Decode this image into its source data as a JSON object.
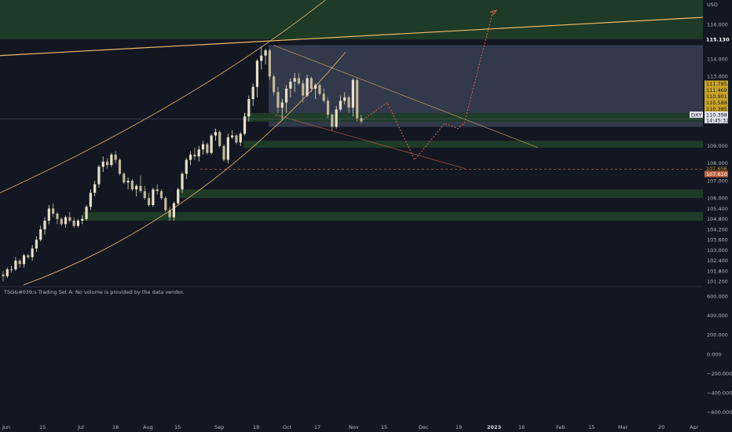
{
  "symbol": "DXY",
  "currency": "USD",
  "indicator_label": "TSG&#039;s Trading Set A: No volume is provided by the data vendor.",
  "price_badges": [
    {
      "text": "115.130",
      "bg": "#131722",
      "fg": "#ffffff",
      "bold": true
    },
    {
      "text": "111.785",
      "bg": "#c9a227",
      "fg": "#131722"
    },
    {
      "text": "111.469",
      "bg": "#c9a227",
      "fg": "#131722"
    },
    {
      "text": "110.901",
      "bg": "#c9a227",
      "fg": "#131722"
    },
    {
      "text": "110.588",
      "bg": "#c9a227",
      "fg": "#131722"
    },
    {
      "text": "110.385",
      "bg": "#c9a227",
      "fg": "#131722"
    },
    {
      "text": "110.398",
      "bg": "#e0e3eb",
      "fg": "#131722"
    },
    {
      "text": "14:45:32",
      "bg": "#e0e3eb",
      "fg": "#131722"
    },
    {
      "text": "107.656",
      "bg": "#131722",
      "fg": "#c9a227"
    },
    {
      "text": "107.610",
      "bg": "#c0623b",
      "fg": "#ffffff"
    }
  ],
  "colors": {
    "background": "#131722",
    "up_candle": "#e8e0c8",
    "down_candle": "#c0b896",
    "zone_green": "#1f3d28",
    "zone_blue": "#3c4558",
    "orange_line": "#f0b86a",
    "projection": "#e0664a",
    "text": "#b2b5be"
  },
  "chart_data": {
    "type": "candlestick",
    "symbol": "DXY",
    "y_unit": "USD",
    "price_axis_ticks": [
      "116.000",
      "115.130",
      "114.000",
      "113.000",
      "111.785",
      "111.469",
      "110.901",
      "110.588",
      "110.385",
      "110.398",
      "109.000",
      "108.000",
      "107.656",
      "107.610",
      "107.000",
      "106.000",
      "105.400",
      "104.800",
      "104.200",
      "103.600",
      "103.000",
      "102.400",
      "101.800",
      "101.200"
    ],
    "indicator_axis_ticks": [
      "600.000",
      "400.000",
      "200.000",
      "0.000",
      "−200.000",
      "−400.000",
      "−600.000"
    ],
    "time_axis_ticks": [
      "Jun",
      "15",
      "Jul",
      "18",
      "Aug",
      "15",
      "Sep",
      "19",
      "Oct",
      "17",
      "Nov",
      "15",
      "Dec",
      "19",
      "2023",
      "16",
      "Feb",
      "15",
      "Mar",
      "20",
      "Apr"
    ],
    "last_price": 110.398,
    "ylim": [
      100.9,
      117.4
    ],
    "indicator_ylim": [
      -700,
      700
    ],
    "candles": [
      [
        101.6,
        101.2,
        101.8,
        101.5
      ],
      [
        101.5,
        101.4,
        102.0,
        101.9
      ],
      [
        101.9,
        101.7,
        102.1,
        101.9
      ],
      [
        101.9,
        101.8,
        102.6,
        102.4
      ],
      [
        102.4,
        102.0,
        102.5,
        102.2
      ],
      [
        102.2,
        102.0,
        102.8,
        102.7
      ],
      [
        102.7,
        102.5,
        102.8,
        102.6
      ],
      [
        102.6,
        102.4,
        103.3,
        103.1
      ],
      [
        103.1,
        102.9,
        103.8,
        103.6
      ],
      [
        103.6,
        103.5,
        104.4,
        104.2
      ],
      [
        104.2,
        103.9,
        104.9,
        104.7
      ],
      [
        104.7,
        104.5,
        105.6,
        105.4
      ],
      [
        105.4,
        104.9,
        105.7,
        105.1
      ],
      [
        105.1,
        104.5,
        105.2,
        104.8
      ],
      [
        104.8,
        104.4,
        104.9,
        104.5
      ],
      [
        104.5,
        104.3,
        105.0,
        104.9
      ],
      [
        104.9,
        104.6,
        105.2,
        104.7
      ],
      [
        104.7,
        104.3,
        104.9,
        104.4
      ],
      [
        104.4,
        104.3,
        104.8,
        104.7
      ],
      [
        104.7,
        104.5,
        105.0,
        104.8
      ],
      [
        104.8,
        104.7,
        105.6,
        105.5
      ],
      [
        105.5,
        105.3,
        106.5,
        106.3
      ],
      [
        106.3,
        106.1,
        107.0,
        106.8
      ],
      [
        106.8,
        106.6,
        107.9,
        107.8
      ],
      [
        107.8,
        107.5,
        108.4,
        108.1
      ],
      [
        108.1,
        107.7,
        108.3,
        107.9
      ],
      [
        107.9,
        107.8,
        108.6,
        108.5
      ],
      [
        108.5,
        108.0,
        108.7,
        108.2
      ],
      [
        108.2,
        107.3,
        108.3,
        107.4
      ],
      [
        107.4,
        106.8,
        107.5,
        106.9
      ],
      [
        106.9,
        106.5,
        107.2,
        107.0
      ],
      [
        107.0,
        106.4,
        107.1,
        106.5
      ],
      [
        106.5,
        106.1,
        106.8,
        106.7
      ],
      [
        106.7,
        106.3,
        107.3,
        106.4
      ],
      [
        106.4,
        105.9,
        106.7,
        106.0
      ],
      [
        106.0,
        105.5,
        106.3,
        105.6
      ],
      [
        105.6,
        105.5,
        106.6,
        106.5
      ],
      [
        106.5,
        106.2,
        106.8,
        106.4
      ],
      [
        106.4,
        105.9,
        106.5,
        106.0
      ],
      [
        106.0,
        105.2,
        106.1,
        105.3
      ],
      [
        105.3,
        104.7,
        105.5,
        104.9
      ],
      [
        104.9,
        104.7,
        105.8,
        105.7
      ],
      [
        105.7,
        105.6,
        106.6,
        106.5
      ],
      [
        106.5,
        106.3,
        107.5,
        107.4
      ],
      [
        107.4,
        107.1,
        108.3,
        108.2
      ],
      [
        108.2,
        107.9,
        108.7,
        108.5
      ],
      [
        108.5,
        108.2,
        108.9,
        108.4
      ],
      [
        108.4,
        108.1,
        109.0,
        108.8
      ],
      [
        108.8,
        108.5,
        109.3,
        109.1
      ],
      [
        109.1,
        108.5,
        109.2,
        108.6
      ],
      [
        108.6,
        108.5,
        109.7,
        109.6
      ],
      [
        109.6,
        109.3,
        110.0,
        109.8
      ],
      [
        109.8,
        108.9,
        109.9,
        109.0
      ],
      [
        109.0,
        108.1,
        109.1,
        108.2
      ],
      [
        108.2,
        108.0,
        109.7,
        109.5
      ],
      [
        109.5,
        109.4,
        109.9,
        109.6
      ],
      [
        109.6,
        109.1,
        109.7,
        109.2
      ],
      [
        109.2,
        109.0,
        109.8,
        109.7
      ],
      [
        109.7,
        109.6,
        110.9,
        110.7
      ],
      [
        110.7,
        110.4,
        111.9,
        111.7
      ],
      [
        111.7,
        111.3,
        112.6,
        112.4
      ],
      [
        112.4,
        111.8,
        114.0,
        113.9
      ],
      [
        113.9,
        113.4,
        114.7,
        114.2
      ],
      [
        114.2,
        113.7,
        114.6,
        114.5
      ],
      [
        114.5,
        112.8,
        114.6,
        113.0
      ],
      [
        113.0,
        111.9,
        113.1,
        112.1
      ],
      [
        112.1,
        110.9,
        112.4,
        111.2
      ],
      [
        111.2,
        110.5,
        111.7,
        111.5
      ],
      [
        111.5,
        110.9,
        112.5,
        112.3
      ],
      [
        112.3,
        111.8,
        112.9,
        112.7
      ],
      [
        112.7,
        112.1,
        113.2,
        112.9
      ],
      [
        112.9,
        112.5,
        113.2,
        112.6
      ],
      [
        112.6,
        111.5,
        112.8,
        111.9
      ],
      [
        111.9,
        111.8,
        113.1,
        112.9
      ],
      [
        112.9,
        112.1,
        113.0,
        112.3
      ],
      [
        112.3,
        111.7,
        112.6,
        112.5
      ],
      [
        112.5,
        111.9,
        112.6,
        112.0
      ],
      [
        112.0,
        111.5,
        112.3,
        111.6
      ],
      [
        111.6,
        110.6,
        111.8,
        110.8
      ],
      [
        110.8,
        109.9,
        110.9,
        110.1
      ],
      [
        110.1,
        110.0,
        111.3,
        111.1
      ],
      [
        111.1,
        111.0,
        111.9,
        111.6
      ],
      [
        111.6,
        111.4,
        112.1,
        111.8
      ],
      [
        111.8,
        110.9,
        111.9,
        111.2
      ],
      [
        111.2,
        110.7,
        112.9,
        112.8
      ],
      [
        112.8,
        110.4,
        112.9,
        110.6
      ],
      [
        110.6,
        110.3,
        110.8,
        110.4
      ]
    ],
    "annotations": {
      "horizontal_levels": [
        115.13,
        107.656
      ],
      "zones": [
        {
          "kind": "green",
          "from": 115.13,
          "to": 117.4
        },
        {
          "kind": "blue",
          "from": 110.1,
          "to": 114.8
        },
        {
          "kind": "green",
          "from": 110.4,
          "to": 110.9
        },
        {
          "kind": "green",
          "from": 108.9,
          "to": 109.3
        },
        {
          "kind": "green",
          "from": 106.0,
          "to": 106.5
        },
        {
          "kind": "green",
          "from": 104.7,
          "to": 105.2
        }
      ],
      "projection_path": [
        [
          "Nov",
          110.4
        ],
        [
          "Nov 15",
          111.5
        ],
        [
          "Dec",
          108.2
        ],
        [
          "Dec 10",
          110.3
        ],
        [
          "Dec 15",
          110.0
        ],
        [
          "Dec 19",
          110.3
        ],
        [
          "2023",
          116.8
        ]
      ]
    }
  }
}
